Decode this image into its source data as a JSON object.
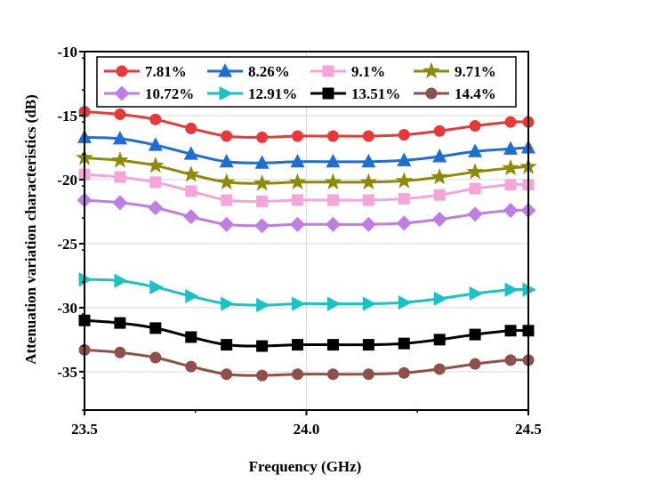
{
  "chart_data": {
    "type": "line",
    "title": "",
    "xlabel": "Frequency (GHz)",
    "ylabel": "Attenuation variation characteristics (dB)",
    "xlim": [
      23.5,
      24.5
    ],
    "ylim": [
      -38,
      -10
    ],
    "x_ticks": [
      "23.5",
      "24.0",
      "24.5"
    ],
    "y_ticks": [
      "-10",
      "-15",
      "-20",
      "-25",
      "-30",
      "-35"
    ],
    "grid": true,
    "legend_position": "top",
    "x": [
      23.5,
      23.58,
      23.66,
      23.74,
      23.82,
      23.9,
      23.98,
      24.06,
      24.14,
      24.22,
      24.3,
      24.38,
      24.46,
      24.5
    ],
    "series": [
      {
        "name": "7.81%",
        "color": "#e8393a",
        "marker": "circle",
        "values": [
          -14.7,
          -14.9,
          -15.3,
          -16.0,
          -16.6,
          -16.7,
          -16.6,
          -16.6,
          -16.6,
          -16.5,
          -16.2,
          -15.8,
          -15.5,
          -15.5
        ]
      },
      {
        "name": "8.26%",
        "color": "#1f6fd1",
        "marker": "triangle-up",
        "values": [
          -16.7,
          -16.8,
          -17.3,
          -18.0,
          -18.6,
          -18.7,
          -18.6,
          -18.6,
          -18.6,
          -18.5,
          -18.2,
          -17.8,
          -17.6,
          -17.5
        ]
      },
      {
        "name": "9.1%",
        "color": "#f4a6d8",
        "marker": "square",
        "values": [
          -19.6,
          -19.8,
          -20.2,
          -20.9,
          -21.6,
          -21.7,
          -21.6,
          -21.6,
          -21.6,
          -21.5,
          -21.2,
          -20.7,
          -20.4,
          -20.4
        ]
      },
      {
        "name": "9.71%",
        "color": "#8c8c0a",
        "marker": "star",
        "values": [
          -18.3,
          -18.5,
          -18.9,
          -19.6,
          -20.2,
          -20.3,
          -20.2,
          -20.2,
          -20.2,
          -20.1,
          -19.8,
          -19.4,
          -19.1,
          -19.0
        ]
      },
      {
        "name": "10.72%",
        "color": "#bf7ee3",
        "marker": "diamond",
        "values": [
          -21.6,
          -21.8,
          -22.2,
          -22.9,
          -23.5,
          -23.6,
          -23.5,
          -23.5,
          -23.5,
          -23.4,
          -23.1,
          -22.7,
          -22.4,
          -22.4
        ]
      },
      {
        "name": "12.91%",
        "color": "#19c3c3",
        "marker": "triangle-right",
        "values": [
          -27.8,
          -27.9,
          -28.4,
          -29.1,
          -29.7,
          -29.8,
          -29.7,
          -29.7,
          -29.7,
          -29.6,
          -29.3,
          -28.9,
          -28.6,
          -28.6
        ]
      },
      {
        "name": "13.51%",
        "color": "#000000",
        "marker": "square",
        "values": [
          -31.0,
          -31.2,
          -31.6,
          -32.3,
          -32.9,
          -33.0,
          -32.9,
          -32.9,
          -32.9,
          -32.8,
          -32.5,
          -32.1,
          -31.8,
          -31.8
        ]
      },
      {
        "name": "14.4%",
        "color": "#8e5049",
        "marker": "circle",
        "values": [
          -33.3,
          -33.5,
          -33.9,
          -34.6,
          -35.2,
          -35.3,
          -35.2,
          -35.2,
          -35.2,
          -35.1,
          -34.8,
          -34.4,
          -34.1,
          -34.1
        ]
      }
    ]
  }
}
